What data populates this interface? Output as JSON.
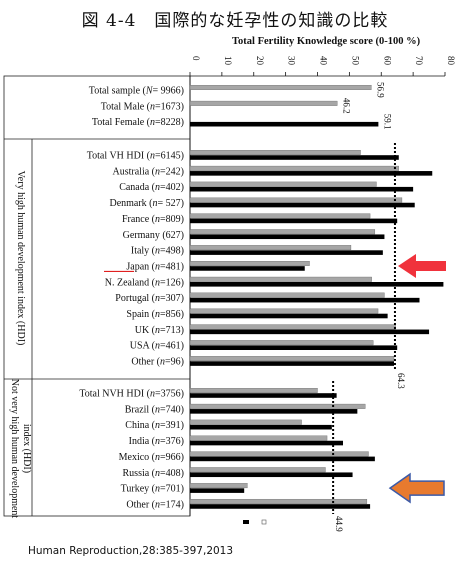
{
  "figure_title": "図 4-4　国際的な妊孕性の知識の比較",
  "source_note": "Human Reproduction,28:385-397,2013",
  "chart_data": {
    "type": "bar",
    "orientation": "horizontal",
    "axis_title": "Total Fertility Knowledge score  (0-100 %)",
    "xlim": [
      0,
      80
    ],
    "ticks": [
      0,
      10,
      20,
      30,
      40,
      50,
      60,
      70,
      80
    ],
    "series_colors": {
      "black": "#000000",
      "gray": "#a6a6a6"
    },
    "sections": [
      {
        "group_label": "",
        "rows": [
          {
            "label": "Total sample (N= 9966)",
            "gray": 56.9,
            "black": null,
            "value_label": "56.9"
          },
          {
            "label": "Total Male (n=1673)",
            "gray": 46.2,
            "black": null,
            "value_label": "46.2"
          },
          {
            "label": "Total Female (n=8228)",
            "gray": null,
            "black": 59.1,
            "value_label": "59.1"
          }
        ]
      },
      {
        "group_label": "Very high human development index (HDI)",
        "rows": [
          {
            "label": "Total VH HDI (n=6145)",
            "gray": 53.5,
            "black": 65.5
          },
          {
            "label": "Australia (n=242)",
            "gray": 65.5,
            "black": 76
          },
          {
            "label": "Canada (n=402)",
            "gray": 58.5,
            "black": 70
          },
          {
            "label": "Denmark (n= 527)",
            "gray": 66.5,
            "black": 70.5
          },
          {
            "label": "France (n=809)",
            "gray": 56.5,
            "black": 65
          },
          {
            "label": "Germany (627)",
            "gray": 58,
            "black": 61
          },
          {
            "label": "Italy (n=498)",
            "gray": 50.5,
            "black": 60.5
          },
          {
            "label": "Japan (n=481)",
            "gray": 37.5,
            "black": 36,
            "highlight": true
          },
          {
            "label": "N. Zealand (n=126)",
            "gray": 57,
            "black": 79.5
          },
          {
            "label": "Portugal (n=307)",
            "gray": 61,
            "black": 72
          },
          {
            "label": "Spain (n=856)",
            "gray": 59,
            "black": 62
          },
          {
            "label": "UK (n=713)",
            "gray": 64.5,
            "black": 75
          },
          {
            "label": "USA (n=461)",
            "gray": 57.5,
            "black": 65
          },
          {
            "label": "Other (n=96)",
            "gray": 64,
            "black": 64
          }
        ],
        "reference_line": 64.3,
        "reference_label": "64.3"
      },
      {
        "group_label": "Not very high human development index (HDI)",
        "rows": [
          {
            "label": "Total NVH HDI (n=3756)",
            "gray": 40,
            "black": 46
          },
          {
            "label": "Brazil (n=740)",
            "gray": 55,
            "black": 52.5
          },
          {
            "label": "China (n=391)",
            "gray": 35,
            "black": 44.5
          },
          {
            "label": "India (n=376)",
            "gray": 43,
            "black": 48
          },
          {
            "label": "Mexico (n=966)",
            "gray": 56,
            "black": 58
          },
          {
            "label": "Russia (n=408)",
            "gray": 42.5,
            "black": 51
          },
          {
            "label": "Turkey (n=701)",
            "gray": 18,
            "black": 17
          },
          {
            "label": "Other (n=174)",
            "gray": 55.5,
            "black": 56.5
          }
        ],
        "reference_line": 44.9,
        "reference_label": "44.9"
      }
    ],
    "arrows": [
      {
        "target_row": "Japan (n=481)",
        "color": "#f0323c"
      },
      {
        "target_row": "Turkey (n=701)",
        "color": "#e87a2e"
      }
    ]
  }
}
